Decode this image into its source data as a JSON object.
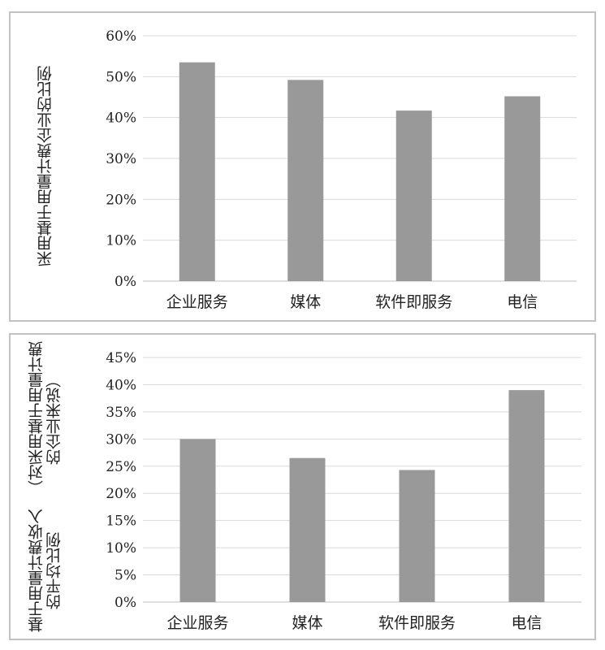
{
  "chart_data": [
    {
      "type": "bar",
      "categories": [
        "企业服务",
        "媒体",
        "软件即服务",
        "电信"
      ],
      "values": [
        0.535,
        0.492,
        0.417,
        0.452
      ],
      "ylabel": "采用基于用量计费企业的比例",
      "ylim": [
        0,
        0.6
      ],
      "yticks": [
        0,
        0.1,
        0.2,
        0.3,
        0.4,
        0.5,
        0.6
      ],
      "ytick_labels": [
        "0%",
        "10%",
        "20%",
        "30%",
        "40%",
        "50%",
        "60%"
      ],
      "bar_color": "#999999",
      "grid": true
    },
    {
      "type": "bar",
      "categories": [
        "企业服务",
        "媒体",
        "软件即服务",
        "电信"
      ],
      "values": [
        0.3,
        0.265,
        0.243,
        0.39
      ],
      "ylabel": "基于用量计费收入的平均比例",
      "ylabel_line2": "（对采用基于用量计费的企业来说）",
      "ylim": [
        0,
        0.45
      ],
      "yticks": [
        0,
        0.05,
        0.1,
        0.15,
        0.2,
        0.25,
        0.3,
        0.35,
        0.4,
        0.45
      ],
      "ytick_labels": [
        "0%",
        "5%",
        "10%",
        "15%",
        "20%",
        "25%",
        "30%",
        "35%",
        "40%",
        "45%"
      ],
      "bar_color": "#999999",
      "grid": true
    }
  ]
}
